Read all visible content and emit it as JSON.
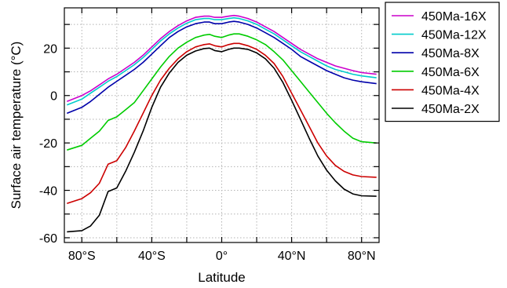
{
  "chart_data": {
    "type": "line",
    "xlabel": "Latitude",
    "ylabel": "Surface air temperature (°C)",
    "xlim": [
      -90,
      90
    ],
    "ylim": [
      -62,
      37
    ],
    "grid": true,
    "legend_position": "outside-right",
    "x_ticks": [
      {
        "value": -80,
        "label": "80°S"
      },
      {
        "value": -40,
        "label": "40°S"
      },
      {
        "value": 0,
        "label": "0°"
      },
      {
        "value": 40,
        "label": "40°N"
      },
      {
        "value": 80,
        "label": "80°N"
      }
    ],
    "y_ticks": [
      {
        "value": 20,
        "label": "20"
      },
      {
        "value": 0,
        "label": "0"
      },
      {
        "value": -20,
        "label": "-20"
      },
      {
        "value": -40,
        "label": "-40"
      },
      {
        "value": -60,
        "label": "-60"
      }
    ],
    "x": [
      -88.5,
      -80,
      -75,
      -70,
      -65,
      -60,
      -55,
      -50,
      -45,
      -40,
      -35,
      -30,
      -25,
      -20,
      -15,
      -10,
      -7,
      -4,
      0,
      4,
      7,
      10,
      15,
      20,
      25,
      30,
      35,
      40,
      45,
      50,
      55,
      60,
      65,
      70,
      75,
      80,
      88.5
    ],
    "series": [
      {
        "name": "450Ma-16X",
        "color": "#cc00cc",
        "values": [
          -2.5,
          0,
          2,
          4.5,
          7,
          9,
          11.5,
          14,
          17,
          20.5,
          24,
          27,
          29.5,
          31.5,
          33,
          33.5,
          33.5,
          33,
          33,
          33.5,
          33.8,
          33.5,
          32.5,
          31,
          29,
          27,
          24.5,
          22,
          19.5,
          17.5,
          15.5,
          14,
          12.5,
          11.5,
          10.5,
          9.7,
          9
        ]
      },
      {
        "name": "450Ma-12X",
        "color": "#00cccc",
        "values": [
          -4,
          -1.5,
          1,
          3.5,
          6,
          8,
          10.5,
          13,
          16,
          19.5,
          23,
          26,
          28.5,
          30.5,
          32,
          32.5,
          32.5,
          32,
          32,
          32.5,
          32.8,
          32.5,
          31.5,
          30,
          28,
          26,
          23.5,
          21,
          18.5,
          16.5,
          14.5,
          12.5,
          11,
          10,
          9,
          8.3,
          7.5
        ]
      },
      {
        "name": "450Ma-8X",
        "color": "#0000aa",
        "values": [
          -7.5,
          -5,
          -2.5,
          0.5,
          3.5,
          6,
          8.5,
          11,
          14,
          17.5,
          21,
          24.5,
          27,
          29,
          30.3,
          31,
          31,
          30.3,
          30.3,
          31,
          31.3,
          31,
          30,
          28.5,
          26.5,
          24.5,
          22,
          19.5,
          16.5,
          14.5,
          12.5,
          10.5,
          9,
          7.5,
          6.5,
          5.8,
          5
        ]
      },
      {
        "name": "450Ma-6X",
        "color": "#00cc00",
        "values": [
          -23,
          -21,
          -18,
          -15,
          -10.5,
          -9,
          -6,
          -3,
          2,
          7,
          12,
          16.5,
          20,
          22.5,
          24.5,
          25.5,
          25.8,
          25,
          24.5,
          25.5,
          26,
          26,
          25,
          23.5,
          21.5,
          18.5,
          15,
          10.5,
          6,
          1.5,
          -3,
          -7.5,
          -11.5,
          -15,
          -18,
          -19.5,
          -20
        ]
      },
      {
        "name": "450Ma-4X",
        "color": "#cc0000",
        "values": [
          -45.5,
          -43.5,
          -41,
          -37,
          -29,
          -27.5,
          -22,
          -15,
          -7.5,
          0,
          6.5,
          11.5,
          15.5,
          18.5,
          20.5,
          21.5,
          21.8,
          21,
          20.5,
          21.5,
          22,
          22,
          21,
          19.5,
          17,
          13.5,
          8,
          1,
          -6,
          -13,
          -20,
          -25.5,
          -29.5,
          -32,
          -33.5,
          -34.2,
          -34.5
        ]
      },
      {
        "name": "450Ma-2X",
        "color": "#000000",
        "values": [
          -57.5,
          -57,
          -55,
          -50.5,
          -40.5,
          -39,
          -32,
          -24,
          -15,
          -5,
          3.5,
          9.5,
          14,
          17,
          18.8,
          19.8,
          20,
          19,
          18.5,
          19.5,
          20,
          20,
          19.5,
          18,
          15.5,
          11.5,
          5.5,
          -2,
          -10,
          -18,
          -25.5,
          -31.5,
          -36,
          -39.5,
          -41.5,
          -42.3,
          -42.5
        ]
      }
    ]
  }
}
